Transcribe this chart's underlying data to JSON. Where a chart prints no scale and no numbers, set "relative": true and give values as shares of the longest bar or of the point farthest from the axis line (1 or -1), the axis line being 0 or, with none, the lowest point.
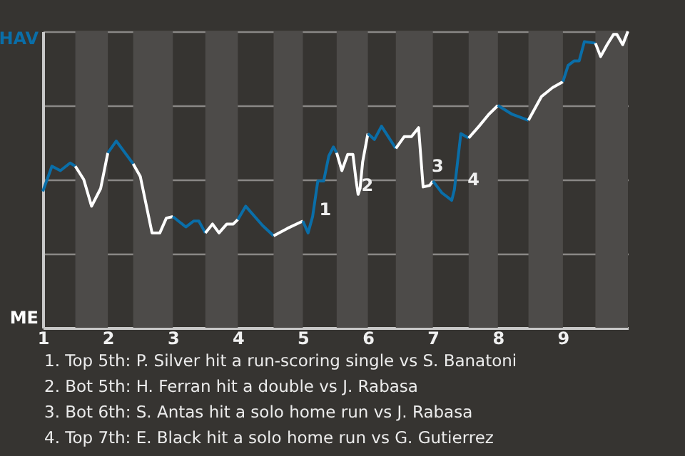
{
  "chart_data": {
    "type": "line",
    "relative": true,
    "series": [
      {
        "color": "#0a6ea8",
        "x": [
          1.0,
          1.14,
          1.27,
          1.42,
          1.5
        ],
        "values": [
          0.46,
          0.545,
          0.53,
          0.556,
          0.545
        ]
      },
      {
        "color": "#ffffff",
        "x": [
          1.5,
          1.63,
          1.75,
          1.89,
          2.0
        ],
        "values": [
          0.545,
          0.5,
          0.41,
          0.47,
          0.59
        ]
      },
      {
        "color": "#0a6ea8",
        "x": [
          2.0,
          2.13,
          2.39
        ],
        "values": [
          0.59,
          0.63,
          0.553
        ]
      },
      {
        "color": "#ffffff",
        "x": [
          2.39,
          2.5,
          2.68,
          2.8,
          2.9,
          3.0
        ],
        "values": [
          0.553,
          0.51,
          0.32,
          0.32,
          0.37,
          0.375
        ]
      },
      {
        "color": "#0a6ea8",
        "x": [
          3.0,
          3.2,
          3.32,
          3.4,
          3.5
        ],
        "values": [
          0.375,
          0.34,
          0.36,
          0.36,
          0.32
        ]
      },
      {
        "color": "#ffffff",
        "x": [
          3.5,
          3.61,
          3.71,
          3.83,
          3.93,
          4.0
        ],
        "values": [
          0.32,
          0.35,
          0.32,
          0.35,
          0.35,
          0.365
        ]
      },
      {
        "color": "#0a6ea8",
        "x": [
          4.0,
          4.12,
          4.38,
          4.55
        ],
        "values": [
          0.365,
          0.41,
          0.345,
          0.31
        ]
      },
      {
        "color": "#ffffff",
        "x": [
          4.55,
          4.76,
          5.0
        ],
        "values": [
          0.31,
          0.335,
          0.36
        ]
      },
      {
        "color": "#0a6ea8",
        "x": [
          5.0,
          5.08,
          5.15,
          5.23,
          5.32,
          5.4,
          5.47,
          5.52
        ],
        "values": [
          0.36,
          0.32,
          0.375,
          0.495,
          0.495,
          0.58,
          0.61,
          0.59
        ]
      },
      {
        "color": "#ffffff",
        "x": [
          5.52,
          5.6,
          5.69,
          5.77,
          5.82,
          5.85,
          5.88,
          5.92,
          6.0
        ],
        "values": [
          0.59,
          0.53,
          0.585,
          0.585,
          0.495,
          0.45,
          0.47,
          0.56,
          0.655
        ]
      },
      {
        "color": "#0a6ea8",
        "x": [
          6.0,
          6.1,
          6.21,
          6.43
        ],
        "values": [
          0.655,
          0.635,
          0.68,
          0.605
        ]
      },
      {
        "color": "#ffffff",
        "x": [
          6.43,
          6.56,
          6.67,
          6.78,
          6.85,
          6.95,
          7.0
        ],
        "values": [
          0.605,
          0.645,
          0.645,
          0.675,
          0.475,
          0.48,
          0.495
        ]
      },
      {
        "color": "#0a6ea8",
        "x": [
          7.0,
          7.14,
          7.29,
          7.33,
          7.43,
          7.55
        ],
        "values": [
          0.495,
          0.455,
          0.43,
          0.465,
          0.655,
          0.64
        ]
      },
      {
        "color": "#ffffff",
        "x": [
          7.55,
          7.71,
          7.86,
          8.0
        ],
        "values": [
          0.64,
          0.68,
          0.72,
          0.75
        ]
      },
      {
        "color": "#0a6ea8",
        "x": [
          8.0,
          8.22,
          8.47
        ],
        "values": [
          0.75,
          0.72,
          0.7
        ]
      },
      {
        "color": "#ffffff",
        "x": [
          8.47,
          8.67,
          8.84,
          9.0
        ],
        "values": [
          0.7,
          0.78,
          0.81,
          0.83
        ]
      },
      {
        "color": "#0a6ea8",
        "x": [
          9.0,
          9.08,
          9.17,
          9.25,
          9.33,
          9.5
        ],
        "values": [
          0.83,
          0.885,
          0.9,
          0.9,
          0.965,
          0.96
        ]
      },
      {
        "color": "#ffffff",
        "x": [
          9.5,
          9.58,
          9.68,
          9.78,
          9.83,
          9.92,
          10.0
        ],
        "values": [
          0.96,
          0.915,
          0.955,
          0.99,
          0.99,
          0.955,
          1.0
        ]
      }
    ],
    "xlim": [
      1,
      10
    ],
    "xticks": [
      1,
      2,
      3,
      4,
      5,
      6,
      7,
      8,
      9
    ],
    "grid": "y",
    "bands": [
      {
        "axis": "x",
        "from": 1.5,
        "to": 2,
        "color": "#4d4b49"
      },
      {
        "axis": "x",
        "from": 2.39,
        "to": 3,
        "color": "#4d4b49"
      },
      {
        "axis": "x",
        "from": 3.5,
        "to": 4,
        "color": "#4d4b49"
      },
      {
        "axis": "x",
        "from": 4.55,
        "to": 5,
        "color": "#4d4b49"
      },
      {
        "axis": "x",
        "from": 5.52,
        "to": 6,
        "color": "#4d4b49"
      },
      {
        "axis": "x",
        "from": 6.43,
        "to": 7,
        "color": "#4d4b49"
      },
      {
        "axis": "x",
        "from": 7.55,
        "to": 8,
        "color": "#4d4b49"
      },
      {
        "axis": "x",
        "from": 8.47,
        "to": 9,
        "color": "#4d4b49"
      },
      {
        "axis": "x",
        "from": 9.5,
        "to": 10,
        "color": "#4d4b49"
      }
    ],
    "annotations": [
      "HAV",
      "ME",
      {
        "text": "1",
        "x": 5.23,
        "y": 0.4
      },
      {
        "text": "2",
        "x": 5.88,
        "y": 0.48
      },
      {
        "text": "3",
        "x": 6.96,
        "y": 0.545
      },
      {
        "text": "4",
        "x": 7.51,
        "y": 0.5
      },
      "1. Top 5th: P. Silver hit a run-scoring single vs S. Banatoni",
      "2. Bot 5th: H. Ferran hit a double vs J. Rabasa",
      "3. Bot 6th: S. Antas hit a solo home run vs J. Rabasa",
      "4. Top 7th: E. Black hit a solo home run vs G. Gutierrez"
    ]
  }
}
